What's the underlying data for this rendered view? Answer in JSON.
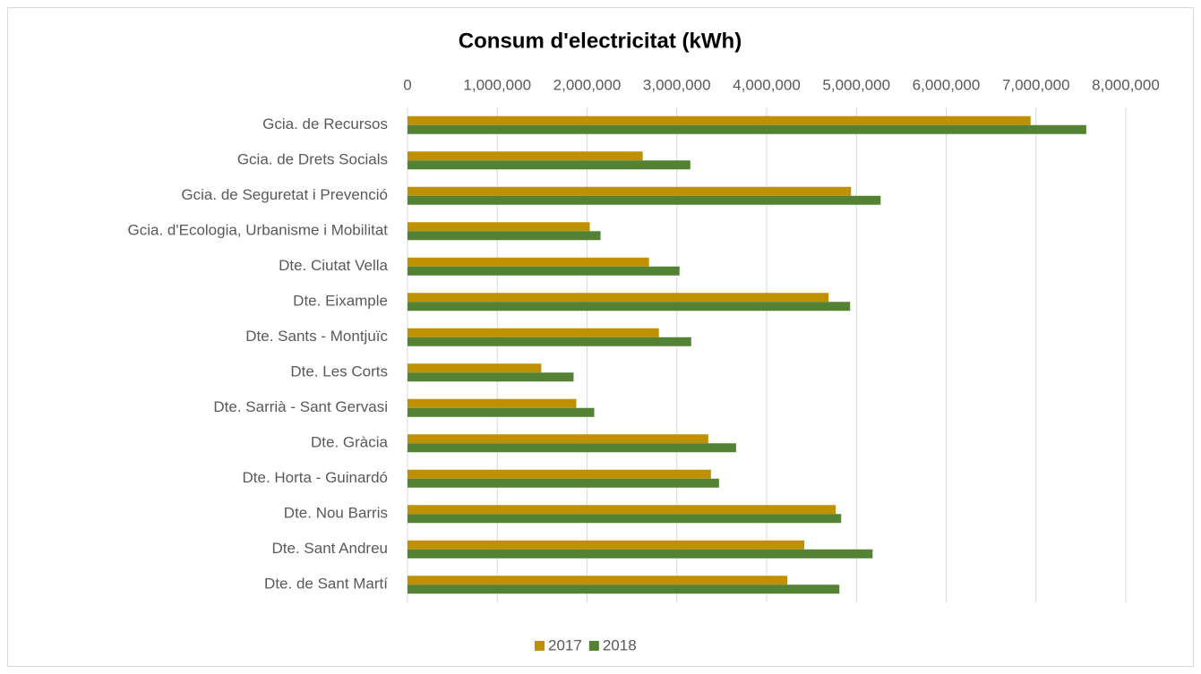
{
  "chart_data": {
    "type": "bar",
    "orientation": "horizontal",
    "title": "Consum d'electricitat (kWh)",
    "categories": [
      "Gcia. de Recursos",
      "Gcia. de Drets Socials",
      "Gcia. de Seguretat i Prevenció",
      "Gcia. d'Ecologia, Urbanisme i Mobilitat",
      "Dte. Ciutat Vella",
      "Dte. Eixample",
      "Dte. Sants - Montjuïc",
      "Dte. Les Corts",
      "Dte. Sarrià - Sant Gervasi",
      "Dte. Gràcia",
      "Dte. Horta - Guinardó",
      "Dte. Nou Barris",
      "Dte. Sant Andreu",
      "Dte. de Sant Martí"
    ],
    "series": [
      {
        "name": "2017",
        "color": "#bf9000",
        "values": [
          6940000,
          2620000,
          4940000,
          2030000,
          2690000,
          4690000,
          2800000,
          1490000,
          1880000,
          3350000,
          3380000,
          4770000,
          4420000,
          4230000
        ]
      },
      {
        "name": "2018",
        "color": "#548235",
        "values": [
          7560000,
          3150000,
          5270000,
          2150000,
          3030000,
          4930000,
          3160000,
          1850000,
          2080000,
          3660000,
          3470000,
          4830000,
          5180000,
          4810000
        ]
      }
    ],
    "xlim": [
      0,
      8000000
    ],
    "xticks": [
      0,
      {
        "value": 1000000,
        "label": "1,000,000"
      },
      {
        "value": 2000000,
        "label": "2,000,000"
      },
      {
        "value": 3000000,
        "label": "3,000,000"
      },
      {
        "value": 4000000,
        "label": "4,000,000"
      },
      {
        "value": 5000000,
        "label": "5,000,000"
      },
      {
        "value": 6000000,
        "label": "6,000,000"
      },
      {
        "value": 7000000,
        "label": "7,000,000"
      },
      {
        "value": 8000000,
        "label": "8,000,000"
      }
    ],
    "grid": true,
    "legend": "bottom"
  }
}
